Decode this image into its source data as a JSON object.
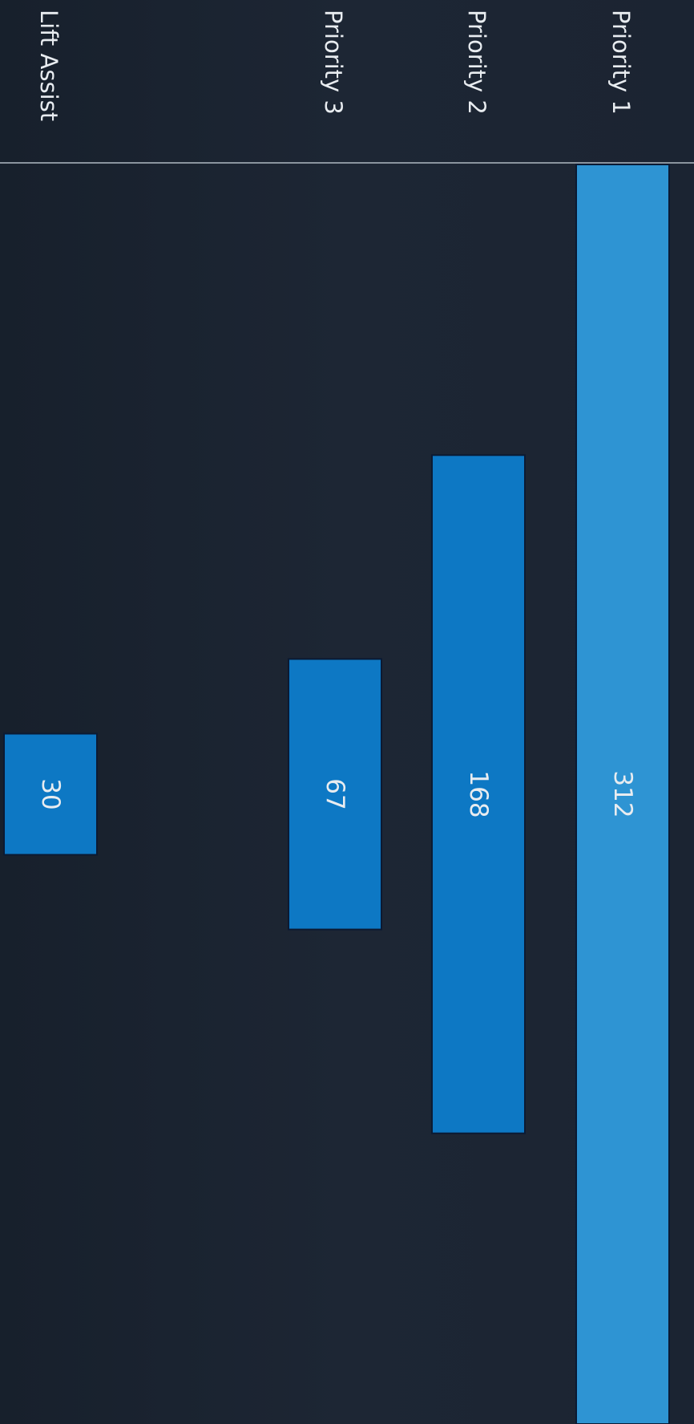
{
  "chart_data": {
    "type": "bar",
    "orientation": "vertical-rotated",
    "title": "",
    "xlabel": "",
    "ylabel": "",
    "categories": [
      "Priority 1",
      "Priority 2",
      "Priority 3",
      "Lift Assist"
    ],
    "values": [
      312,
      168,
      67,
      30
    ],
    "ylim": [
      0,
      312
    ],
    "grid": false,
    "legend": "none",
    "colors": {
      "background": "#1a2230",
      "bar_primary": "#2e94d3",
      "bar_secondary": "#0d78c4",
      "bar_edge": "#0b1a33",
      "axis_line": "#8a949e",
      "text": "#e8ecf0"
    }
  }
}
